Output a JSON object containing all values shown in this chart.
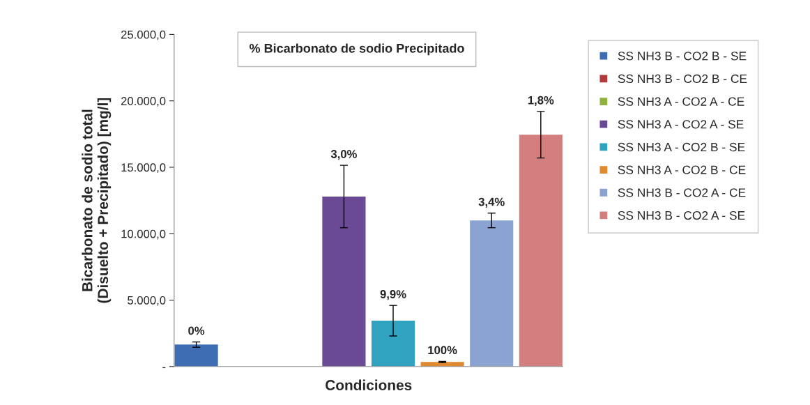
{
  "chart_data": {
    "type": "bar",
    "title": "% Bicarbonato de sodio Precipitado",
    "xlabel": "Condiciones",
    "ylabel": "Bicarbonato de sodio total\n(Disuelto + Precipitado) [mg/l]",
    "categories": [
      null
    ],
    "series": [
      {
        "name": "SS NH3 B - CO2 B - SE",
        "color": "#3e6db3",
        "values": [
          1650
        ],
        "errors": [
          200
        ]
      },
      {
        "name": "SS NH3 B - CO2 B - CE",
        "color": "#b03a3a",
        "values": [
          null
        ],
        "errors": [
          null
        ]
      },
      {
        "name": "SS NH3 A - CO2 A - CE",
        "color": "#8fb140",
        "values": [
          null
        ],
        "errors": [
          null
        ]
      },
      {
        "name": "SS NH3 A - CO2 A - SE",
        "color": "#6a4a94",
        "values": [
          12800
        ],
        "errors": [
          2350
        ]
      },
      {
        "name": "SS NH3 A - CO2 B - SE",
        "color": "#2fa3c0",
        "values": [
          3450
        ],
        "errors": [
          1150
        ]
      },
      {
        "name": "SS NH3 A - CO2 B - CE",
        "color": "#e0892e",
        "values": [
          340
        ],
        "errors": [
          50
        ]
      },
      {
        "name": "SS NH3 B - CO2 A - CE",
        "color": "#8aa3d0",
        "values": [
          11000
        ],
        "errors": [
          550
        ]
      },
      {
        "name": "SS NH3 B - CO2 A - SE",
        "color": "#d47f7f",
        "values": [
          17450
        ],
        "errors": [
          1750
        ]
      }
    ],
    "annotations": [
      {
        "text": "0%",
        "y": 1850
      },
      {
        "text": "3,0%",
        "y": 15150
      },
      {
        "text": "9,9%",
        "y": 4600
      },
      {
        "text": "100%",
        "y": 390
      },
      {
        "text": "3,4%",
        "y": 11550
      },
      {
        "text": "1,8%",
        "y": 19200
      }
    ],
    "ylim": [
      0,
      25000
    ],
    "yticks": [
      {
        "value": 0,
        "label": "-"
      },
      {
        "value": 5000,
        "label": "5.000,0"
      },
      {
        "value": 10000,
        "label": "10.000,0"
      },
      {
        "value": 15000,
        "label": "15.000,0"
      },
      {
        "value": 20000,
        "label": "20.000,0"
      },
      {
        "value": 25000,
        "label": "25.000,0"
      }
    ],
    "grid": false,
    "legend": "right"
  }
}
